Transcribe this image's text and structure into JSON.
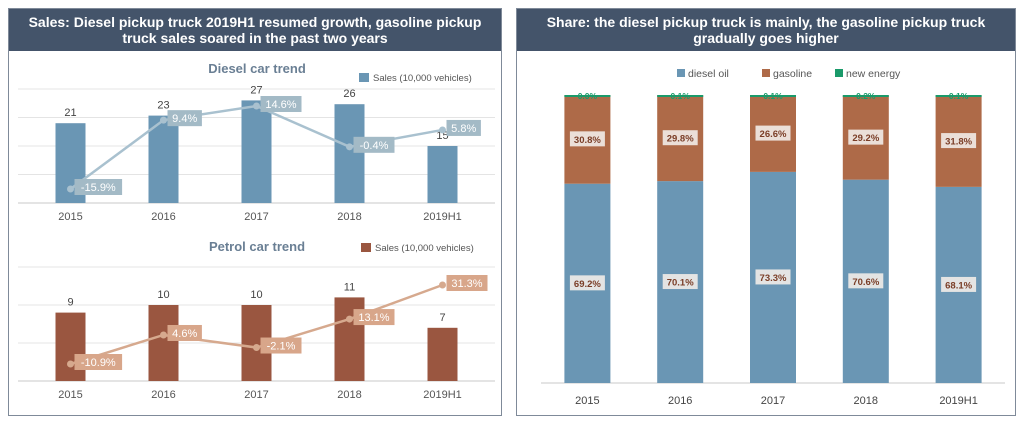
{
  "left_panel": {
    "title": "Sales: Diesel pickup truck 2019H1 resumed growth, gasoline pickup truck sales soared in the past two years"
  },
  "right_panel": {
    "title": "Share: the diesel pickup truck is mainly, the gasoline pickup truck gradually goes higher"
  },
  "colors": {
    "header_bg": "#44546a",
    "diesel": "#6a96b4",
    "diesel_line": "#a9c1cf",
    "petrol": "#9a5640",
    "petrol_line": "#d6a98e",
    "gasoline_share": "#ae6a48",
    "new_energy": "#1a9a6a",
    "label_box_diesel": "#a3bac6",
    "label_box_petrol": "#d8a68a"
  },
  "chart_data": [
    {
      "type": "bar",
      "title": "Diesel car trend",
      "categories": [
        "2015",
        "2016",
        "2017",
        "2018",
        "2019H1"
      ],
      "series": [
        {
          "name": "Sales (10,000 vehicles)",
          "values": [
            21,
            23,
            27,
            26,
            15
          ]
        },
        {
          "name": "",
          "type": "line",
          "values": [
            -15.9,
            9.4,
            14.6,
            -0.4,
            5.8
          ],
          "labels": [
            "-15.9%",
            "9.4%",
            "14.6%",
            "-0.4%",
            "5.8%"
          ]
        }
      ],
      "legend": "top-right",
      "grid": true
    },
    {
      "type": "bar",
      "title": "Petrol car trend",
      "categories": [
        "2015",
        "2016",
        "2017",
        "2018",
        "2019H1"
      ],
      "series": [
        {
          "name": "Sales (10,000 vehicles)",
          "values": [
            9,
            10,
            10,
            11,
            7
          ]
        },
        {
          "name": "",
          "type": "line",
          "values": [
            -10.9,
            4.6,
            -2.1,
            13.1,
            31.3
          ],
          "labels": [
            "-10.9%",
            "4.6%",
            "-2.1%",
            "13.1%",
            "31.3%"
          ]
        }
      ],
      "legend": "top-right",
      "grid": true
    },
    {
      "type": "bar",
      "stacked": true,
      "categories": [
        "2015",
        "2016",
        "2017",
        "2018",
        "2019H1"
      ],
      "series": [
        {
          "name": "diesel oil",
          "values": [
            69.2,
            70.1,
            73.3,
            70.6,
            68.1
          ],
          "labels": [
            "69.2%",
            "70.1%",
            "73.3%",
            "70.6%",
            "68.1%"
          ]
        },
        {
          "name": "gasoline",
          "values": [
            30.8,
            29.8,
            26.6,
            29.2,
            31.8
          ],
          "labels": [
            "30.8%",
            "29.8%",
            "26.6%",
            "29.2%",
            "31.8%"
          ]
        },
        {
          "name": "new energy",
          "values": [
            0.0,
            0.1,
            0.1,
            0.2,
            0.1
          ],
          "labels": [
            "0.0%",
            "0.1%",
            "0.1%",
            "0.2%",
            "0.1%"
          ]
        }
      ],
      "legend": "top",
      "grid": false
    }
  ]
}
